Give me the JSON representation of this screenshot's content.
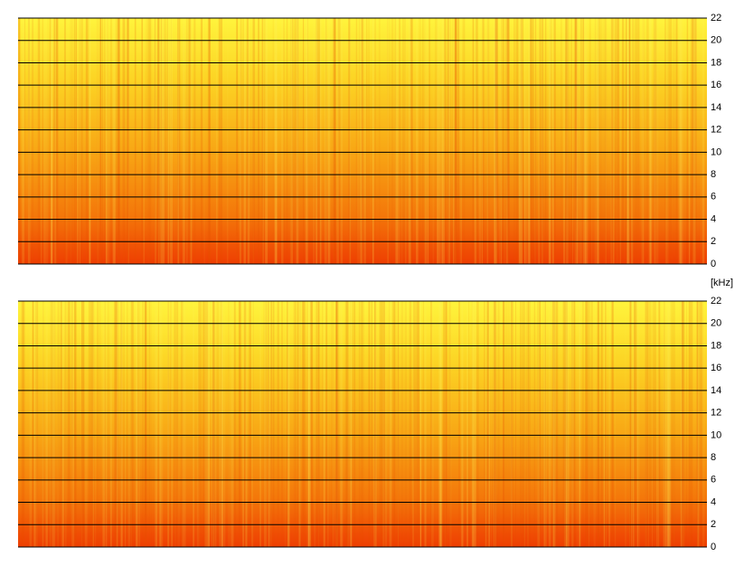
{
  "chart_data": [
    {
      "type": "spectrogram",
      "ylim": [
        0,
        22
      ],
      "yticks": [
        0,
        2,
        4,
        6,
        8,
        10,
        12,
        14,
        16,
        18,
        20,
        22
      ],
      "grid": true
    },
    {
      "type": "spectrogram",
      "y_label": "[kHz]",
      "ylim": [
        0,
        22
      ],
      "yticks": [
        0,
        2,
        4,
        6,
        8,
        10,
        12,
        14,
        16,
        18,
        20,
        22
      ],
      "grid": true
    }
  ]
}
